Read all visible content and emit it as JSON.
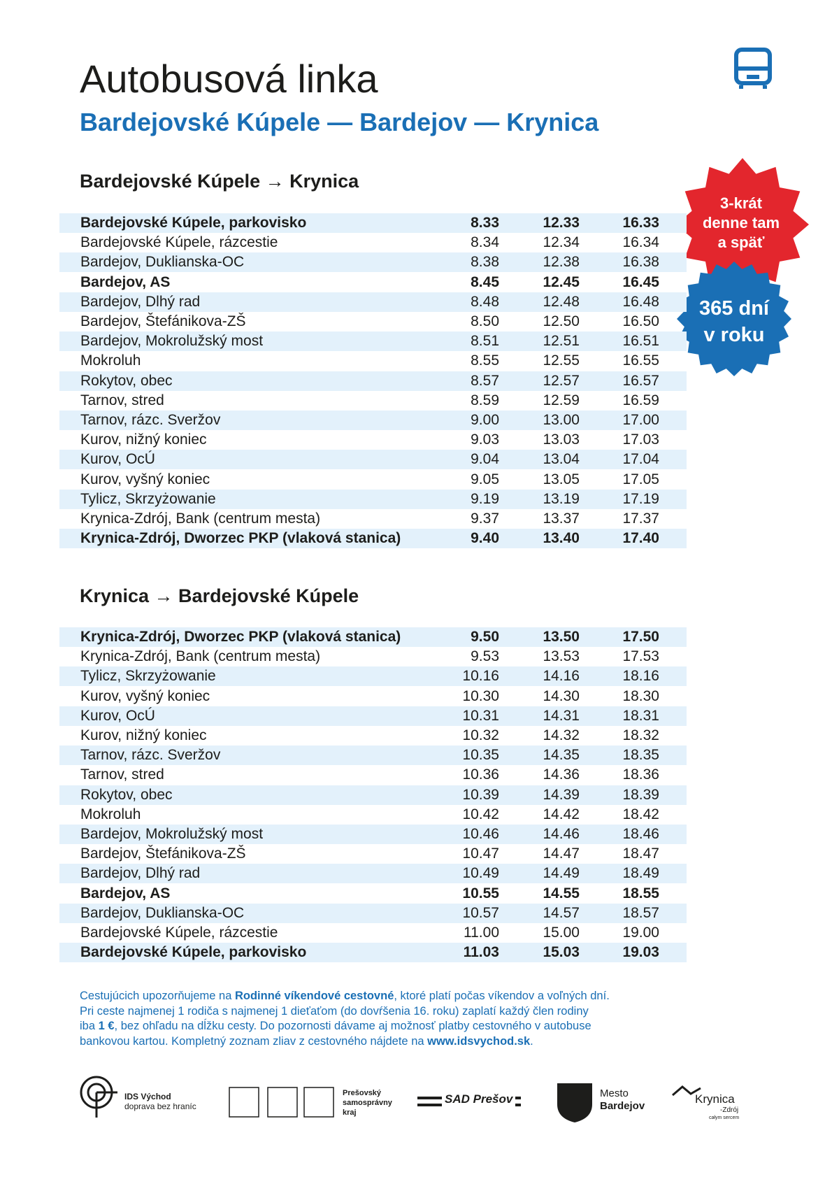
{
  "header": {
    "title": "Autobusová linka",
    "subtitle": "Bardejovské Kúpele — Bardejov — Krynica"
  },
  "badges": {
    "red": [
      "3-krát",
      "denne tam",
      "a späť"
    ],
    "blue": [
      "365 dní",
      "v roku"
    ]
  },
  "tables": [
    {
      "heading": "Bardejovské Kúpele → Krynica",
      "rows": [
        {
          "stop": "Bardejovské Kúpele, parkovisko",
          "times": [
            "8.33",
            "12.33",
            "16.33"
          ],
          "bold": true
        },
        {
          "stop": "Bardejovské Kúpele, rázcestie",
          "times": [
            "8.34",
            "12.34",
            "16.34"
          ],
          "bold": false
        },
        {
          "stop": "Bardejov, Duklianska-OC",
          "times": [
            "8.38",
            "12.38",
            "16.38"
          ],
          "bold": false
        },
        {
          "stop": "Bardejov, AS",
          "times": [
            "8.45",
            "12.45",
            "16.45"
          ],
          "bold": true
        },
        {
          "stop": "Bardejov, Dlhý rad",
          "times": [
            "8.48",
            "12.48",
            "16.48"
          ],
          "bold": false
        },
        {
          "stop": "Bardejov, Štefánikova-ZŠ",
          "times": [
            "8.50",
            "12.50",
            "16.50"
          ],
          "bold": false
        },
        {
          "stop": "Bardejov, Mokrolužský most",
          "times": [
            "8.51",
            "12.51",
            "16.51"
          ],
          "bold": false
        },
        {
          "stop": "Mokroluh",
          "times": [
            "8.55",
            "12.55",
            "16.55"
          ],
          "bold": false
        },
        {
          "stop": "Rokytov, obec",
          "times": [
            "8.57",
            "12.57",
            "16.57"
          ],
          "bold": false
        },
        {
          "stop": "Tarnov, stred",
          "times": [
            "8.59",
            "12.59",
            "16.59"
          ],
          "bold": false
        },
        {
          "stop": "Tarnov, rázc. Sveržov",
          "times": [
            "9.00",
            "13.00",
            "17.00"
          ],
          "bold": false
        },
        {
          "stop": "Kurov, nižný koniec",
          "times": [
            "9.03",
            "13.03",
            "17.03"
          ],
          "bold": false
        },
        {
          "stop": "Kurov, OcÚ",
          "times": [
            "9.04",
            "13.04",
            "17.04"
          ],
          "bold": false
        },
        {
          "stop": "Kurov, vyšný koniec",
          "times": [
            "9.05",
            "13.05",
            "17.05"
          ],
          "bold": false
        },
        {
          "stop": "Tylicz, Skrzyżowanie",
          "times": [
            "9.19",
            "13.19",
            "17.19"
          ],
          "bold": false
        },
        {
          "stop": "Krynica-Zdrój, Bank (centrum mesta)",
          "times": [
            "9.37",
            "13.37",
            "17.37"
          ],
          "bold": false
        },
        {
          "stop": "Krynica-Zdrój, Dworzec PKP (vlaková stanica)",
          "times": [
            "9.40",
            "13.40",
            "17.40"
          ],
          "bold": true
        }
      ]
    },
    {
      "heading": "Krynica → Bardejovské Kúpele",
      "rows": [
        {
          "stop": "Krynica-Zdrój, Dworzec PKP (vlaková stanica)",
          "times": [
            "9.50",
            "13.50",
            "17.50"
          ],
          "bold": true
        },
        {
          "stop": "Krynica-Zdrój, Bank (centrum mesta)",
          "times": [
            "9.53",
            "13.53",
            "17.53"
          ],
          "bold": false
        },
        {
          "stop": "Tylicz, Skrzyżowanie",
          "times": [
            "10.16",
            "14.16",
            "18.16"
          ],
          "bold": false
        },
        {
          "stop": "Kurov, vyšný koniec",
          "times": [
            "10.30",
            "14.30",
            "18.30"
          ],
          "bold": false
        },
        {
          "stop": "Kurov, OcÚ",
          "times": [
            "10.31",
            "14.31",
            "18.31"
          ],
          "bold": false
        },
        {
          "stop": "Kurov, nižný koniec",
          "times": [
            "10.32",
            "14.32",
            "18.32"
          ],
          "bold": false
        },
        {
          "stop": "Tarnov, rázc. Sveržov",
          "times": [
            "10.35",
            "14.35",
            "18.35"
          ],
          "bold": false
        },
        {
          "stop": "Tarnov, stred",
          "times": [
            "10.36",
            "14.36",
            "18.36"
          ],
          "bold": false
        },
        {
          "stop": "Rokytov, obec",
          "times": [
            "10.39",
            "14.39",
            "18.39"
          ],
          "bold": false
        },
        {
          "stop": "Mokroluh",
          "times": [
            "10.42",
            "14.42",
            "18.42"
          ],
          "bold": false
        },
        {
          "stop": "Bardejov, Mokrolužský most",
          "times": [
            "10.46",
            "14.46",
            "18.46"
          ],
          "bold": false
        },
        {
          "stop": "Bardejov, Štefánikova-ZŠ",
          "times": [
            "10.47",
            "14.47",
            "18.47"
          ],
          "bold": false
        },
        {
          "stop": "Bardejov, Dlhý rad",
          "times": [
            "10.49",
            "14.49",
            "18.49"
          ],
          "bold": false
        },
        {
          "stop": "Bardejov, AS",
          "times": [
            "10.55",
            "14.55",
            "18.55"
          ],
          "bold": true
        },
        {
          "stop": "Bardejov, Duklianska-OC",
          "times": [
            "10.57",
            "14.57",
            "18.57"
          ],
          "bold": false
        },
        {
          "stop": "Bardejovské Kúpele, rázcestie",
          "times": [
            "11.00",
            "15.00",
            "19.00"
          ],
          "bold": false
        },
        {
          "stop": "Bardejovské Kúpele, parkovisko",
          "times": [
            "11.03",
            "15.03",
            "19.03"
          ],
          "bold": true
        }
      ]
    }
  ],
  "note": {
    "lines": [
      [
        {
          "text": "Cestujúcich upozorňujeme na ",
          "bold": false
        },
        {
          "text": "Rodinné víkendové cestovné",
          "bold": true
        },
        {
          "text": ", ktoré platí počas víkendov a voľných dní.",
          "bold": false
        }
      ],
      [
        {
          "text": "Pri ceste najmenej 1 rodiča s najmenej 1 dieťaťom (do dovŕšenia 16. roku) zaplatí každý člen rodiny",
          "bold": false
        }
      ],
      [
        {
          "text": "iba ",
          "bold": false
        },
        {
          "text": "1 €",
          "bold": true
        },
        {
          "text": ", bez ohľadu na dĺžku cesty. Do pozornosti dávame aj možnosť platby cestovného v autobuse",
          "bold": false
        }
      ],
      [
        {
          "text": "bankovou kartou. Kompletný zoznam zliav z cestovného nájdete na ",
          "bold": false
        },
        {
          "text": "www.idsvychod.sk",
          "bold": true
        },
        {
          "text": ".",
          "bold": false
        }
      ]
    ]
  },
  "logos": {
    "ids": [
      "IDS Východ",
      "doprava bez hraníc"
    ],
    "psk": [
      "Prešovský",
      "samosprávny",
      "kraj"
    ],
    "sad": "SAD Prešov",
    "bardejov": [
      "Mesto",
      "Bardejov"
    ],
    "krynica": [
      "Krynica",
      "-Zdrój",
      "całym sercem"
    ]
  }
}
